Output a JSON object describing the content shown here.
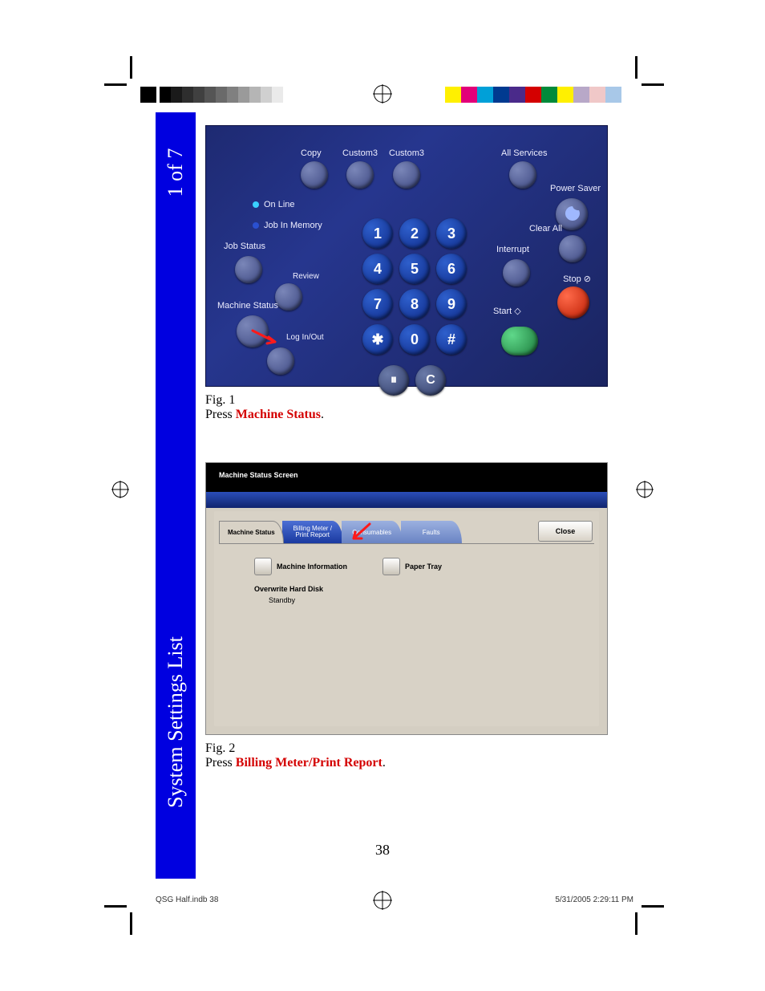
{
  "colors": {
    "sidebar_bg": "#0000e0",
    "sidebar_fg": "#ffffff",
    "highlight_text": "#d40000",
    "panel1_bg_from": "#1e2a72",
    "panel1_bg_to": "#1a2460",
    "keypad_btn": "#1a3ab8",
    "stop_btn": "#d42a00",
    "start_btn": "#2a9a4a",
    "panel2_bg": "#d4cec2",
    "panel2_tab_active": "#d8d2c6",
    "panel2_tab_inactive": "#6a84c4",
    "panel2_blue_bar": "#1a3aa0"
  },
  "registration": {
    "gradient_grays": [
      "#000000",
      "#1a1a1a",
      "#2e2e2e",
      "#404040",
      "#555555",
      "#6a6a6a",
      "#808080",
      "#9a9a9a",
      "#b5b5b5",
      "#d0d0d0",
      "#eaeaea",
      "#ffffff"
    ],
    "color_swatches": [
      "#ffffff",
      "#fff000",
      "#e20079",
      "#00a0d8",
      "#003a90",
      "#4a2a8a",
      "#d40000",
      "#008a3a",
      "#fff000",
      "#b8a8c8",
      "#f0c8c8",
      "#a8c8e8",
      "#ffffff"
    ]
  },
  "sidebar": {
    "page_of": "1 of 7",
    "title": "System Settings List"
  },
  "fig1": {
    "caption_label": "Fig. 1",
    "caption_pre": "Press ",
    "caption_hl": "Machine Status",
    "caption_post": ".",
    "topButtons": {
      "copy": "Copy",
      "custom3a": "Custom3",
      "custom3b": "Custom3",
      "allServices": "All Services"
    },
    "rightLabels": {
      "powerSaver": "Power Saver",
      "clearAll": "Clear All",
      "interrupt": "Interrupt",
      "stop": "Stop ⊘",
      "start": "Start ◇"
    },
    "leftStatus": {
      "onLine": "On Line",
      "onLine_led": "#3ad0ff",
      "jobInMemory": "Job In Memory",
      "jobInMemory_led": "#2a50d0",
      "jobStatus": "Job Status",
      "review": "Review",
      "machineStatus": "Machine Status",
      "logInOut": "Log In/Out"
    },
    "keypad": [
      "1",
      "2",
      "3",
      "4",
      "5",
      "6",
      "7",
      "8",
      "9",
      "✱",
      "0",
      "#"
    ],
    "extKeys": [
      "⏸",
      "C"
    ]
  },
  "fig2": {
    "caption_label": "Fig. 2",
    "caption_pre": "Press ",
    "caption_hl": "Billing Meter/Print Report",
    "caption_post": ".",
    "screenTitle": "Machine Status Screen",
    "tabs": {
      "machineStatus": "Machine Status",
      "billing_l1": "Billing Meter /",
      "billing_l2": "Print Report",
      "consumables": "Consumables",
      "faults": "Faults"
    },
    "close": "Close",
    "opts": {
      "machineInfo": "Machine Information",
      "paperTray": "Paper Tray"
    },
    "ohd": {
      "head": "Overwrite Hard Disk",
      "val": "Standby"
    }
  },
  "pageNumber": "38",
  "footer": {
    "left": "QSG Half.indb   38",
    "right": "5/31/2005   2:29:11 PM"
  }
}
